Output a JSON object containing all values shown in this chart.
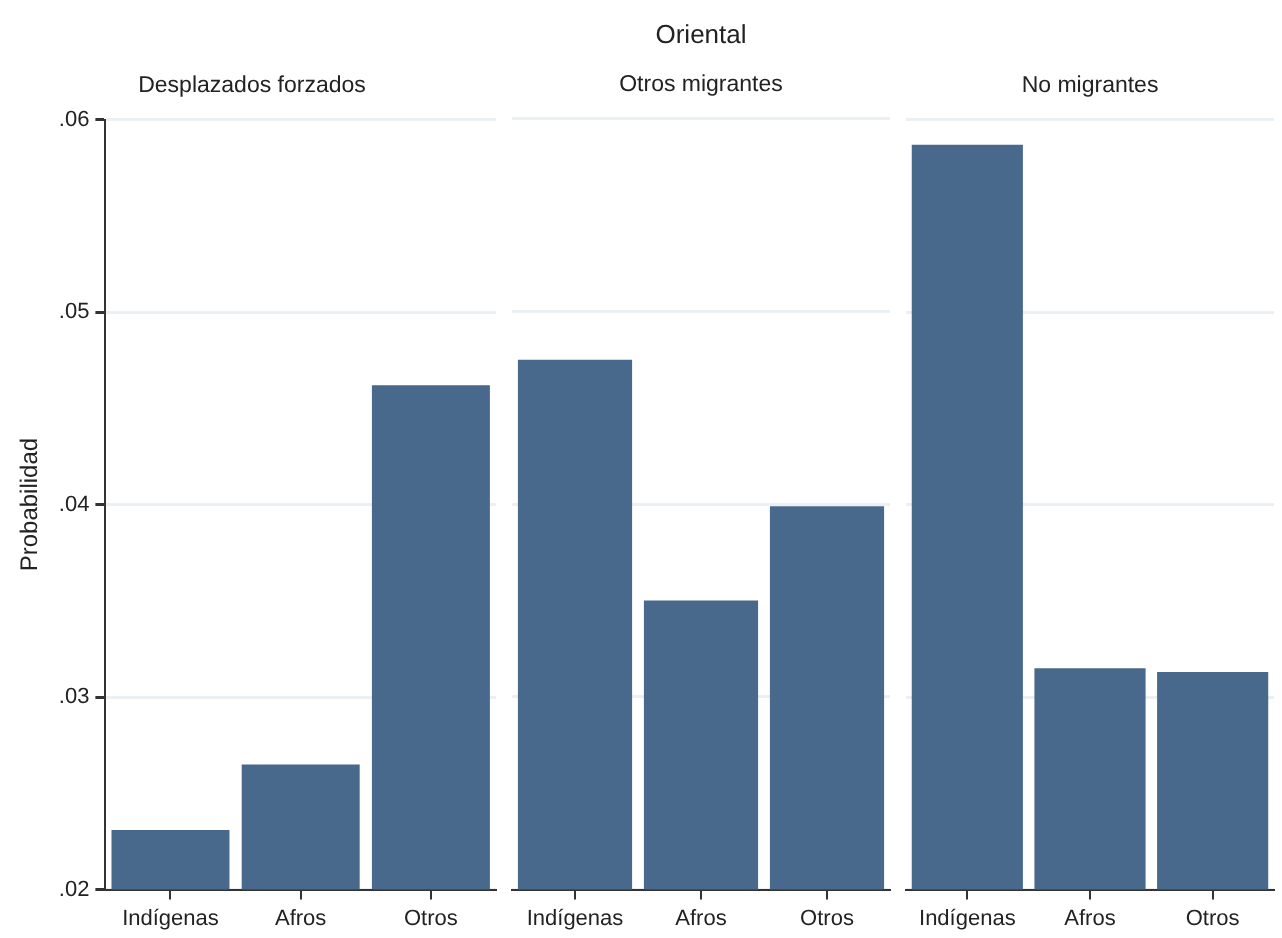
{
  "chart_data": [
    {
      "type": "bar",
      "subtitle": "Desplazados forzados",
      "ylabel": "Probabilidad",
      "categories": [
        "Indígenas",
        "Afros",
        "Otros"
      ],
      "values": [
        0.0231,
        0.0265,
        0.0462
      ],
      "color": "#48698b",
      "ylim": [
        0.02,
        0.06
      ],
      "yticks": [
        {
          "value": 0.02,
          "label": ".02"
        },
        {
          "value": 0.03,
          "label": ".03"
        },
        {
          "value": 0.04,
          "label": ".04"
        },
        {
          "value": 0.05,
          "label": ".05"
        },
        {
          "value": 0.06,
          "label": ".06"
        }
      ],
      "grid": "y"
    },
    {
      "type": "bar",
      "title": "Oriental",
      "subtitle": "Otros migrantes",
      "categories": [
        "Indígenas",
        "Afros",
        "Otros"
      ],
      "values": [
        0.0475,
        0.035,
        0.0399
      ],
      "color": "#48698b",
      "ylim": [
        0.02,
        0.06
      ],
      "yticks": [
        {
          "value": 0.02,
          "label": null
        },
        {
          "value": 0.03,
          "label": null
        },
        {
          "value": 0.04,
          "label": null
        },
        {
          "value": 0.05,
          "label": null
        },
        {
          "value": 0.06,
          "label": null
        }
      ],
      "grid": "y",
      "tick_labels": "x"
    },
    {
      "type": "bar",
      "subtitle": "No migrantes",
      "categories": [
        "Indígenas",
        "Afros",
        "Otros"
      ],
      "values": [
        0.0587,
        0.0315,
        0.0313
      ],
      "color": "#48698b",
      "ylim": [
        0.02,
        0.06
      ],
      "yticks": [
        {
          "value": 0.02,
          "label": null
        },
        {
          "value": 0.03,
          "label": null
        },
        {
          "value": 0.04,
          "label": null
        },
        {
          "value": 0.05,
          "label": null
        },
        {
          "value": 0.06,
          "label": null
        }
      ],
      "grid": "y",
      "tick_labels": "x"
    }
  ]
}
